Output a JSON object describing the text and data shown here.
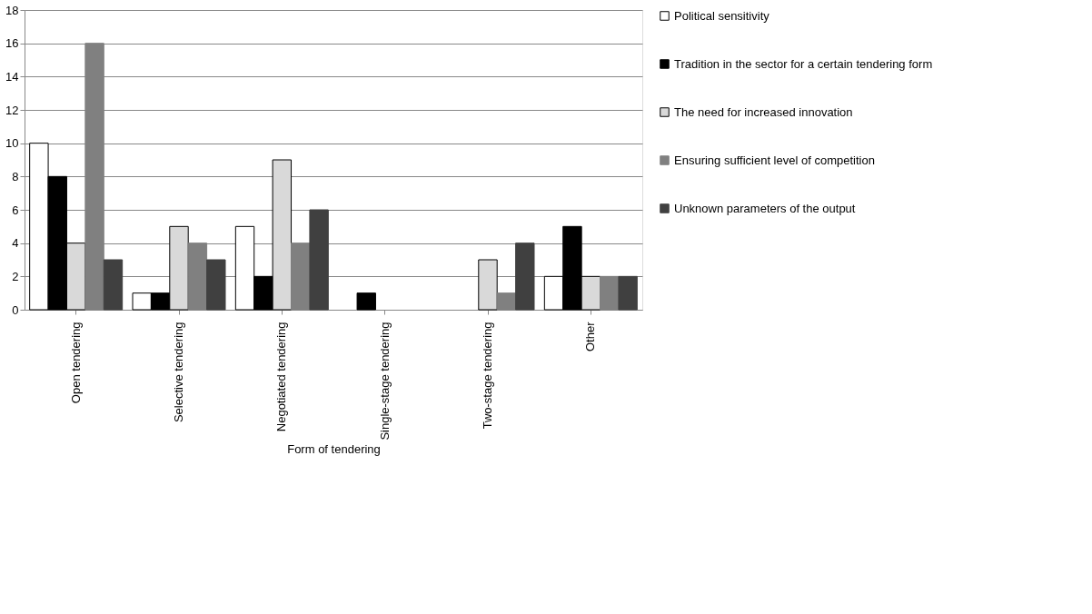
{
  "chart_data": {
    "type": "bar",
    "xlabel": "Form of tendering",
    "categories": [
      "Open tendering",
      "Selective tendering",
      "Negotiated tendering",
      "Single-stage tendering",
      "Two-stage tendering",
      "Other"
    ],
    "series": [
      {
        "name": "Political sensitivity",
        "color": "#ffffff",
        "values": [
          10,
          1,
          5,
          null,
          null,
          2
        ]
      },
      {
        "name": "Tradition in the sector for a certain tendering form",
        "color": "#000000",
        "values": [
          8,
          1,
          2,
          1,
          null,
          5
        ]
      },
      {
        "name": "The need for increased innovation",
        "color": "#d9d9d9",
        "values": [
          4,
          5,
          9,
          null,
          3,
          2
        ]
      },
      {
        "name": "Ensuring sufficient level of competition",
        "color": "#808080",
        "values": [
          16,
          4,
          4,
          null,
          1,
          2
        ]
      },
      {
        "name": "Unknown parameters of the output",
        "color": "#404040",
        "values": [
          3,
          3,
          6,
          null,
          4,
          2
        ]
      }
    ],
    "ylim": [
      0,
      18
    ],
    "yticks": [
      0,
      2,
      4,
      6,
      8,
      10,
      12,
      14,
      16,
      18
    ],
    "grid": "y",
    "legend": "right"
  }
}
